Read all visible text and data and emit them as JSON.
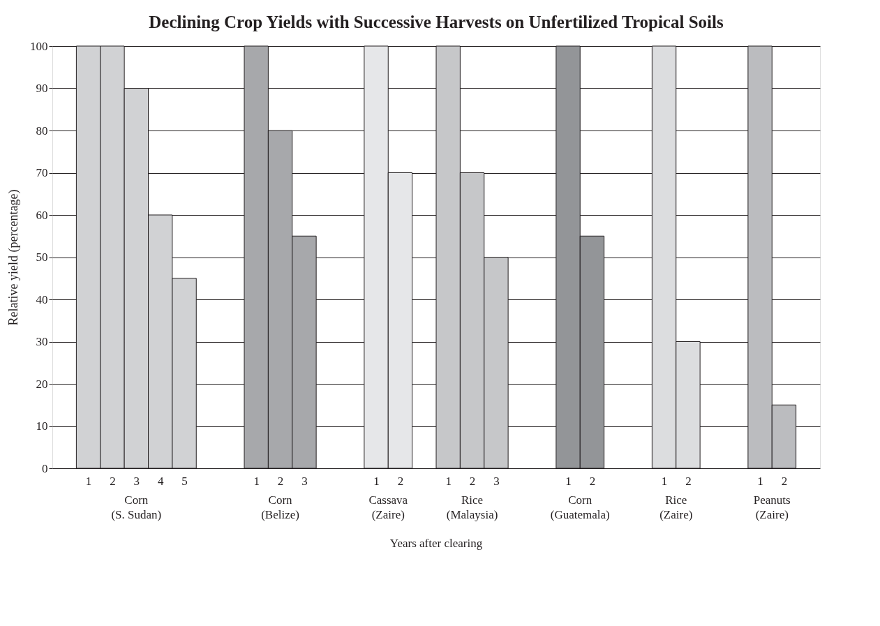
{
  "chart_data": {
    "type": "bar",
    "title": "Declining Crop Yields with Successive Harvests on Unfertilized Tropical Soils",
    "xlabel": "Years after clearing",
    "ylabel": "Relative yield (percentage)",
    "categories": [
      null,
      "1",
      "2",
      "3",
      "4",
      "5",
      null,
      null,
      "1",
      "2",
      "3",
      null,
      null,
      "1",
      "2",
      null,
      "1",
      "2",
      "3",
      null,
      null,
      "1",
      "2",
      null,
      null,
      "1",
      "2",
      null,
      null,
      "1",
      "2",
      null
    ],
    "values": [
      null,
      100,
      100,
      90,
      60,
      45,
      null,
      null,
      100,
      80,
      55,
      null,
      null,
      100,
      70,
      null,
      100,
      70,
      50,
      null,
      null,
      100,
      55,
      null,
      null,
      100,
      30,
      null,
      null,
      100,
      15,
      null
    ],
    "colors": [
      null,
      "#d1d2d4",
      "#d1d2d4",
      "#d1d2d4",
      "#d1d2d4",
      "#d1d2d4",
      null,
      null,
      "#a7a8ab",
      "#a7a8ab",
      "#a7a8ab",
      null,
      null,
      "#e6e7e9",
      "#e6e7e9",
      null,
      "#c6c7c9",
      "#c6c7c9",
      "#c6c7c9",
      null,
      null,
      "#939598",
      "#939598",
      null,
      null,
      "#dcdddf",
      "#dcdddf",
      null,
      null,
      "#bbbcbf",
      "#bbbcbf",
      null
    ],
    "annotations": [
      "Corn\n(S. Sudan)",
      "Corn\n(Belize)",
      "Cassava\n(Zaire)",
      "Rice\n(Malaysia)",
      "Corn\n(Guatemala)",
      "Rice\n(Zaire)",
      "Peanuts\n(Zaire)"
    ],
    "ylim": [
      0,
      100
    ],
    "yticks": [
      0,
      10,
      20,
      30,
      40,
      50,
      60,
      70,
      80,
      90,
      100
    ],
    "grid": "y"
  }
}
